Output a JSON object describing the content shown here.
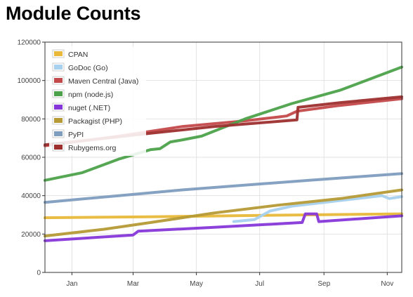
{
  "page": {
    "title": "Module Counts"
  },
  "chart_data": {
    "type": "line",
    "title": "Module Counts",
    "xlabel": "",
    "ylabel": "",
    "xlim": [
      "2012-12-20",
      "2013-11-29"
    ],
    "ylim": [
      0,
      120000
    ],
    "yticks": [
      0,
      20000,
      40000,
      60000,
      80000,
      100000,
      120000
    ],
    "xticks": [
      {
        "date": "2013-01-15",
        "label": "Jan"
      },
      {
        "date": "2013-03-15",
        "label": "Mar"
      },
      {
        "date": "2013-05-15",
        "label": "May"
      },
      {
        "date": "2013-07-15",
        "label": "Jul"
      },
      {
        "date": "2013-09-15",
        "label": "Sep"
      },
      {
        "date": "2013-11-15",
        "label": "Nov"
      }
    ],
    "grid": true,
    "legend_position": "top-left",
    "series": [
      {
        "name": "CPAN",
        "color": "#e8b93a",
        "points": [
          [
            "2012-12-20",
            28500
          ],
          [
            "2013-04-01",
            29000
          ],
          [
            "2013-08-01",
            29800
          ],
          [
            "2013-11-29",
            30500
          ]
        ]
      },
      {
        "name": "GoDoc (Go)",
        "color": "#a7d1ee",
        "points": [
          [
            "2013-06-20",
            26500
          ],
          [
            "2013-07-10",
            27500
          ],
          [
            "2013-07-25",
            32000
          ],
          [
            "2013-08-15",
            34500
          ],
          [
            "2013-11-10",
            40000
          ],
          [
            "2013-11-17",
            38500
          ],
          [
            "2013-11-29",
            39500
          ]
        ]
      },
      {
        "name": "Maven Central (Java)",
        "color": "#c4494b",
        "points": [
          [
            "2012-12-20",
            66000
          ],
          [
            "2013-03-01",
            71000
          ],
          [
            "2013-05-01",
            76000
          ],
          [
            "2013-07-01",
            79000
          ],
          [
            "2013-08-10",
            81500
          ],
          [
            "2013-08-20",
            84000
          ],
          [
            "2013-09-30",
            87000
          ],
          [
            "2013-11-29",
            90500
          ]
        ]
      },
      {
        "name": "npm (node.js)",
        "color": "#4ca24b",
        "points": [
          [
            "2012-12-20",
            48000
          ],
          [
            "2013-01-25",
            52000
          ],
          [
            "2013-03-01",
            59000
          ],
          [
            "2013-04-01",
            64000
          ],
          [
            "2013-04-10",
            64500
          ],
          [
            "2013-04-20",
            68000
          ],
          [
            "2013-05-01",
            69000
          ],
          [
            "2013-05-20",
            71000
          ],
          [
            "2013-07-01",
            80000
          ],
          [
            "2013-08-15",
            88000
          ],
          [
            "2013-10-01",
            95000
          ],
          [
            "2013-11-29",
            107000
          ]
        ]
      },
      {
        "name": "nuget (.NET)",
        "color": "#8737d9",
        "points": [
          [
            "2012-12-20",
            16500
          ],
          [
            "2013-03-15",
            19500
          ],
          [
            "2013-03-20",
            21500
          ],
          [
            "2013-06-01",
            23500
          ],
          [
            "2013-08-25",
            26000
          ],
          [
            "2013-08-28",
            30500
          ],
          [
            "2013-09-08",
            30500
          ],
          [
            "2013-09-10",
            26500
          ],
          [
            "2013-11-29",
            29500
          ]
        ]
      },
      {
        "name": "Packagist (PHP)",
        "color": "#b59a35",
        "points": [
          [
            "2012-12-20",
            19000
          ],
          [
            "2013-02-15",
            22500
          ],
          [
            "2013-04-01",
            26000
          ],
          [
            "2013-06-01",
            31000
          ],
          [
            "2013-08-01",
            35000
          ],
          [
            "2013-10-01",
            38500
          ],
          [
            "2013-11-29",
            43000
          ]
        ]
      },
      {
        "name": "PyPI",
        "color": "#7f9dbf",
        "points": [
          [
            "2012-12-20",
            36500
          ],
          [
            "2013-03-01",
            40000
          ],
          [
            "2013-05-01",
            43000
          ],
          [
            "2013-07-01",
            45500
          ],
          [
            "2013-09-01",
            48000
          ],
          [
            "2013-11-29",
            51500
          ]
        ]
      },
      {
        "name": "Rubygems.org",
        "color": "#9e2f2f",
        "points": [
          [
            "2012-12-20",
            66500
          ],
          [
            "2013-02-01",
            69000
          ],
          [
            "2013-04-01",
            72500
          ],
          [
            "2013-06-01",
            76000
          ],
          [
            "2013-08-20",
            79500
          ],
          [
            "2013-08-21",
            86000
          ],
          [
            "2013-10-01",
            88500
          ],
          [
            "2013-11-29",
            91500
          ]
        ]
      }
    ]
  }
}
